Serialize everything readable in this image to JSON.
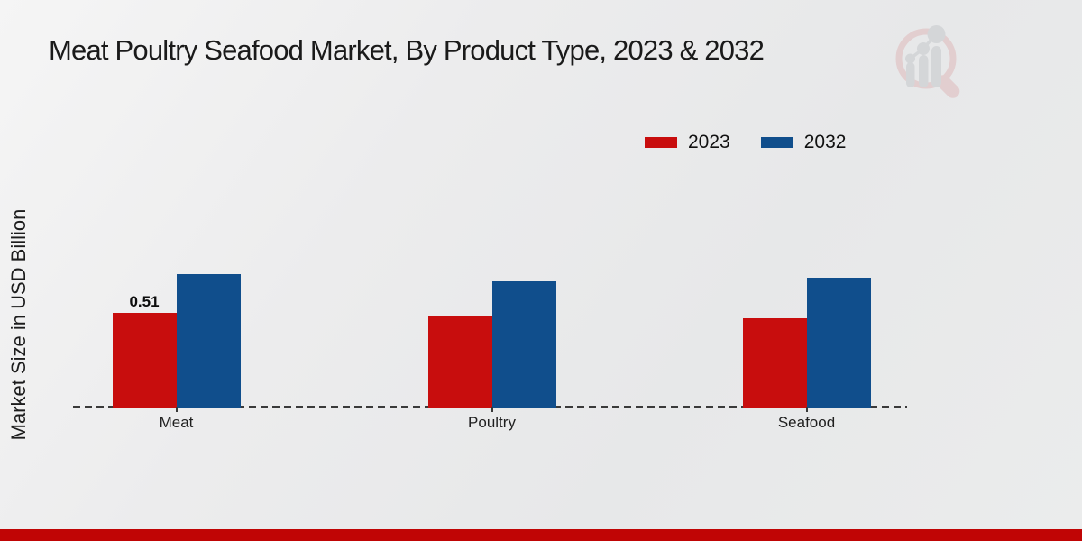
{
  "page": {
    "title": "Meat Poultry Seafood Market, By Product Type, 2023 & 2032"
  },
  "chart_data": {
    "type": "bar",
    "title": "Meat Poultry Seafood Market, By Product Type, 2023 & 2032",
    "categories": [
      "Meat",
      "Poultry",
      "Seafood"
    ],
    "series": [
      {
        "name": "2023",
        "color": "#c80d0d",
        "values": [
          0.51,
          0.49,
          0.48
        ],
        "value_labels": [
          "0.51",
          "",
          ""
        ]
      },
      {
        "name": "2032",
        "color": "#104e8c",
        "values": [
          0.72,
          0.68,
          0.7
        ],
        "value_labels": [
          "",
          "",
          ""
        ]
      }
    ],
    "xlabel": "",
    "ylabel": "Market Size in USD Billion",
    "ylim": [
      0,
      0.9
    ],
    "grid": false,
    "axis_ticks_visible": false,
    "legend_position": "top-right",
    "baseline_style": "dashed"
  },
  "legend": {
    "items": [
      {
        "label": "2023",
        "color": "#c80d0d"
      },
      {
        "label": "2032",
        "color": "#104e8c"
      }
    ]
  },
  "branding": {
    "logo_name": "market-research-future-watermark",
    "footer_bar_color": "#c00505"
  }
}
